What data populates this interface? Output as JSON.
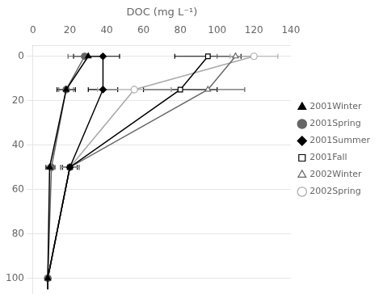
{
  "chart_data": {
    "type": "line",
    "xlabel": "DOC (mg L⁻¹)",
    "xlim": [
      0,
      140
    ],
    "xticks": [
      0,
      20,
      40,
      60,
      80,
      100,
      120,
      140
    ],
    "ylim": [
      107,
      -5
    ],
    "yticks": [
      0,
      20,
      40,
      60,
      80,
      100
    ],
    "grid": "y",
    "legend": "right",
    "series": [
      {
        "name": "2001Winter",
        "color": "#000000",
        "marker": "triangle",
        "x": [
          30,
          18,
          9,
          8,
          8
        ],
        "values": [
          0,
          15,
          50,
          100,
          105
        ],
        "xerr": [
          8,
          5,
          2,
          1,
          0
        ]
      },
      {
        "name": "2001Spring",
        "color": "#666666",
        "marker": "circle",
        "x": [
          28,
          18,
          10,
          8,
          8
        ],
        "values": [
          0,
          15,
          50,
          100,
          105
        ],
        "xerr": [
          9,
          4,
          2,
          1,
          0
        ]
      },
      {
        "name": "2001Summer",
        "color": "#000000",
        "marker": "diamond",
        "x": [
          38,
          38,
          20,
          8,
          8
        ],
        "values": [
          0,
          15,
          50,
          100,
          105
        ],
        "xerr": [
          9,
          8,
          4,
          1,
          0
        ]
      },
      {
        "name": "2001Fall",
        "color": "#000000",
        "marker": "square-open",
        "x": [
          95,
          80,
          20,
          8
        ],
        "values": [
          0,
          15,
          50,
          100
        ],
        "xerr": [
          18,
          20,
          5,
          1
        ]
      },
      {
        "name": "2002Winter",
        "color": "#666666",
        "marker": "triangle-open",
        "x": [
          110,
          95,
          20,
          8
        ],
        "values": [
          0,
          15,
          50,
          100
        ],
        "xerr": [
          10,
          20,
          5,
          1
        ]
      },
      {
        "name": "2002Spring",
        "color": "#aaaaaa",
        "marker": "circle-open",
        "x": [
          120,
          55,
          20,
          8
        ],
        "values": [
          0,
          15,
          50,
          100
        ],
        "xerr": [
          13,
          20,
          5,
          1
        ]
      }
    ]
  }
}
